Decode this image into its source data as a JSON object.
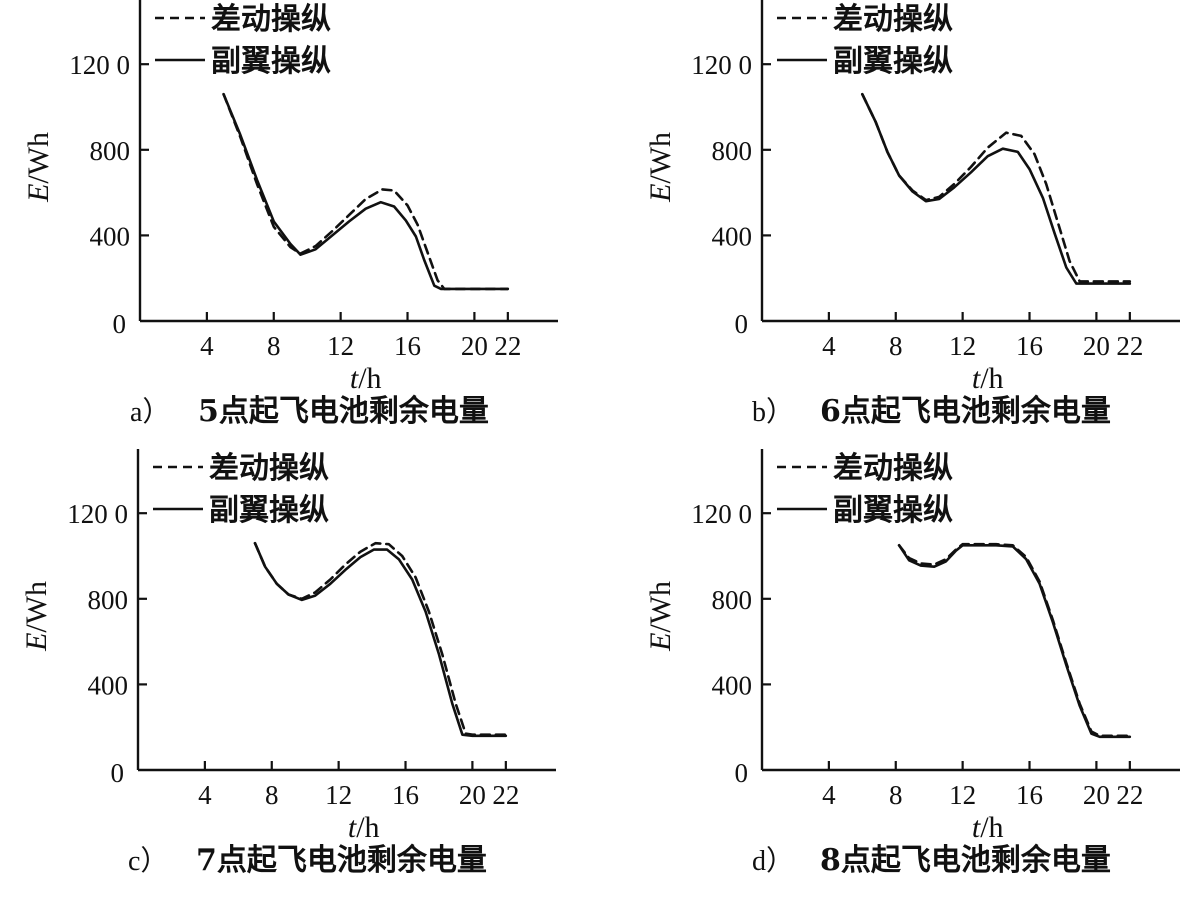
{
  "figure": {
    "legend": {
      "dashed": "差动操纵",
      "solid": "副翼操纵"
    }
  },
  "chart_data": [
    {
      "type": "line",
      "label": "a）",
      "caption": "5点起飞电池剩余电量",
      "ylabel_var": "E",
      "ylabel_unit": "/Wh",
      "xlabel_var": "t",
      "xlabel_unit": "/h",
      "xlim": [
        0,
        25
      ],
      "ylim": [
        0,
        1500
      ],
      "xticks": [
        4,
        8,
        12,
        16,
        20,
        22
      ],
      "yticks": [
        0,
        400,
        800,
        1200
      ],
      "ytick_labels": [
        "0",
        "400",
        "800",
        "120 0"
      ],
      "series": [
        {
          "name": "差动操纵",
          "style": "dashed",
          "x": [
            5,
            6,
            7,
            8,
            9,
            9.6,
            10.5,
            11.5,
            12.5,
            13.5,
            14.5,
            15.2,
            16,
            16.6,
            17.2,
            17.8,
            18.2,
            20,
            22
          ],
          "y": [
            1060,
            860,
            640,
            440,
            345,
            315,
            350,
            420,
            495,
            570,
            615,
            610,
            540,
            450,
            320,
            190,
            150,
            150,
            150
          ]
        },
        {
          "name": "副翼操纵",
          "style": "solid",
          "x": [
            5,
            6,
            7,
            8,
            9,
            9.6,
            10.5,
            11.5,
            12.5,
            13.5,
            14.4,
            15.2,
            15.9,
            16.5,
            17,
            17.6,
            18,
            20,
            22
          ],
          "y": [
            1060,
            870,
            660,
            465,
            360,
            310,
            335,
            400,
            465,
            525,
            555,
            535,
            470,
            395,
            285,
            165,
            150,
            150,
            150
          ]
        }
      ]
    },
    {
      "type": "line",
      "label": "b）",
      "caption": "6点起飞电池剩余电量",
      "ylabel_var": "E",
      "ylabel_unit": "/Wh",
      "xlabel_var": "t",
      "xlabel_unit": "/h",
      "xlim": [
        0,
        25
      ],
      "ylim": [
        0,
        1500
      ],
      "xticks": [
        4,
        8,
        12,
        16,
        20,
        22
      ],
      "yticks": [
        0,
        400,
        800,
        1200
      ],
      "ytick_labels": [
        "0",
        "400",
        "800",
        "120 0"
      ],
      "series": [
        {
          "name": "差动操纵",
          "style": "dashed",
          "x": [
            6,
            6.8,
            7.5,
            8.2,
            9,
            9.8,
            10.6,
            11.5,
            12.5,
            13.5,
            14.6,
            15.5,
            16.3,
            17,
            17.7,
            18.4,
            19,
            20,
            22
          ],
          "y": [
            1060,
            930,
            790,
            680,
            610,
            565,
            580,
            640,
            720,
            810,
            880,
            865,
            780,
            640,
            460,
            280,
            185,
            185,
            185
          ]
        },
        {
          "name": "副翼操纵",
          "style": "solid",
          "x": [
            6,
            6.8,
            7.5,
            8.2,
            9,
            9.8,
            10.6,
            11.5,
            12.5,
            13.5,
            14.4,
            15.3,
            16,
            16.8,
            17.5,
            18.2,
            18.8,
            20,
            22
          ],
          "y": [
            1060,
            930,
            790,
            680,
            605,
            560,
            570,
            625,
            695,
            770,
            805,
            790,
            710,
            575,
            410,
            250,
            175,
            175,
            175
          ]
        }
      ]
    },
    {
      "type": "line",
      "label": "c）",
      "caption": "7点起飞电池剩余电量",
      "ylabel_var": "E",
      "ylabel_unit": "/Wh",
      "xlabel_var": "t",
      "xlabel_unit": "/h",
      "xlim": [
        0,
        25
      ],
      "ylim": [
        0,
        1500
      ],
      "xticks": [
        4,
        8,
        12,
        16,
        20,
        22
      ],
      "yticks": [
        0,
        400,
        800,
        1200
      ],
      "ytick_labels": [
        "0",
        "400",
        "800",
        "120 0"
      ],
      "series": [
        {
          "name": "差动操纵",
          "style": "dashed",
          "x": [
            7,
            7.6,
            8.3,
            9,
            9.8,
            10.6,
            11.5,
            12.4,
            13.3,
            14.2,
            15,
            15.8,
            16.6,
            17.4,
            18.2,
            19,
            19.6,
            20,
            22
          ],
          "y": [
            1060,
            950,
            870,
            820,
            800,
            830,
            890,
            960,
            1020,
            1060,
            1055,
            1000,
            900,
            740,
            540,
            310,
            170,
            165,
            165
          ]
        },
        {
          "name": "副翼操纵",
          "style": "solid",
          "x": [
            7,
            7.6,
            8.3,
            9,
            9.8,
            10.6,
            11.5,
            12.4,
            13.3,
            14.1,
            14.9,
            15.6,
            16.4,
            17.2,
            18,
            18.8,
            19.4,
            20,
            22
          ],
          "y": [
            1060,
            950,
            870,
            820,
            795,
            815,
            870,
            935,
            995,
            1030,
            1030,
            985,
            890,
            740,
            540,
            310,
            165,
            160,
            160
          ]
        }
      ]
    },
    {
      "type": "line",
      "label": "d）",
      "caption": "8点起飞电池剩余电量",
      "ylabel_var": "E",
      "ylabel_unit": "/Wh",
      "xlabel_var": "t",
      "xlabel_unit": "/h",
      "xlim": [
        0,
        25
      ],
      "ylim": [
        0,
        1500
      ],
      "xticks": [
        4,
        8,
        12,
        16,
        20,
        22
      ],
      "yticks": [
        0,
        400,
        800,
        1200
      ],
      "ytick_labels": [
        "0",
        "400",
        "800",
        "120 0"
      ],
      "series": [
        {
          "name": "差动操纵",
          "style": "dashed",
          "x": [
            8.2,
            8.8,
            9.5,
            10.3,
            11,
            11.6,
            12,
            13,
            14,
            15,
            15.8,
            16.6,
            17.4,
            18.2,
            19,
            19.7,
            20.2,
            21,
            22
          ],
          "y": [
            1050,
            990,
            965,
            960,
            985,
            1030,
            1055,
            1055,
            1055,
            1050,
            995,
            880,
            700,
            500,
            310,
            180,
            160,
            160,
            160
          ]
        },
        {
          "name": "副翼操纵",
          "style": "solid",
          "x": [
            8.2,
            8.8,
            9.5,
            10.3,
            11,
            11.6,
            12,
            13,
            14,
            15,
            15.8,
            16.6,
            17.4,
            18.2,
            19,
            19.7,
            20.2,
            21,
            22
          ],
          "y": [
            1050,
            980,
            955,
            950,
            975,
            1025,
            1050,
            1050,
            1050,
            1045,
            985,
            870,
            690,
            490,
            300,
            170,
            155,
            155,
            155
          ]
        }
      ]
    }
  ]
}
